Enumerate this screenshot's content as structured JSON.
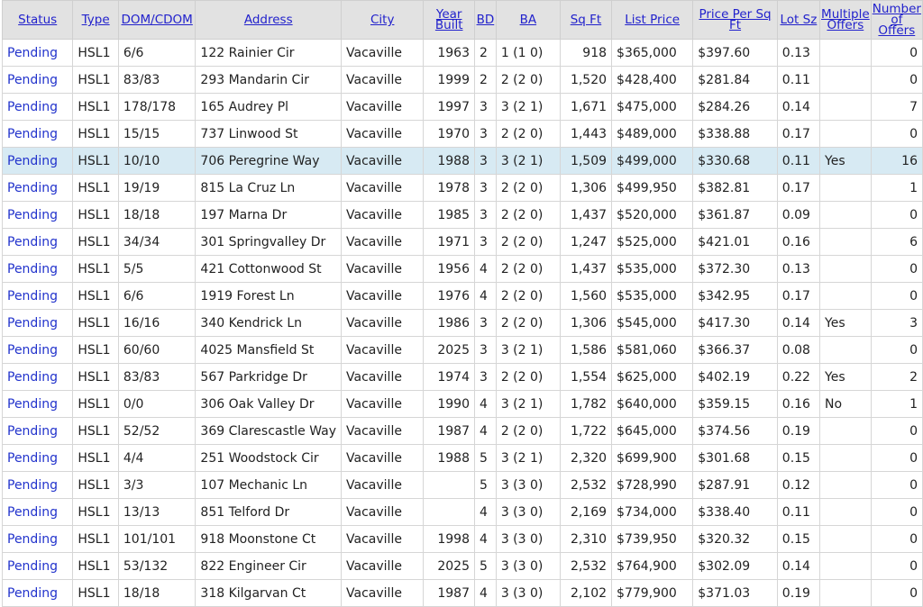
{
  "columns": [
    "Status",
    "Type",
    "DOM/CDOM",
    "Address",
    "City",
    "Year Built",
    "BD",
    "BA",
    "Sq Ft",
    "List Price",
    "Price Per Sq Ft",
    "Lot Sz",
    "Multiple Offers",
    "Number of Offers"
  ],
  "highlight_color": "#d7eaf3",
  "highlighted_row": 4,
  "rows": [
    [
      "Pending",
      "HSL1",
      "6/6",
      "122 Rainier Cir",
      "Vacaville",
      "1963",
      "2",
      "1 (1 0)",
      "918",
      "$365,000",
      "$397.60",
      "0.13",
      "",
      "0"
    ],
    [
      "Pending",
      "HSL1",
      "83/83",
      "293 Mandarin Cir",
      "Vacaville",
      "1999",
      "2",
      "2 (2 0)",
      "1,520",
      "$428,400",
      "$281.84",
      "0.11",
      "",
      "0"
    ],
    [
      "Pending",
      "HSL1",
      "178/178",
      "165 Audrey Pl",
      "Vacaville",
      "1997",
      "3",
      "3 (2 1)",
      "1,671",
      "$475,000",
      "$284.26",
      "0.14",
      "",
      "7"
    ],
    [
      "Pending",
      "HSL1",
      "15/15",
      "737 Linwood St",
      "Vacaville",
      "1970",
      "3",
      "2 (2 0)",
      "1,443",
      "$489,000",
      "$338.88",
      "0.17",
      "",
      "0"
    ],
    [
      "Pending",
      "HSL1",
      "10/10",
      "706 Peregrine Way",
      "Vacaville",
      "1988",
      "3",
      "3 (2 1)",
      "1,509",
      "$499,000",
      "$330.68",
      "0.11",
      "Yes",
      "16"
    ],
    [
      "Pending",
      "HSL1",
      "19/19",
      "815 La Cruz Ln",
      "Vacaville",
      "1978",
      "3",
      "2 (2 0)",
      "1,306",
      "$499,950",
      "$382.81",
      "0.17",
      "",
      "1"
    ],
    [
      "Pending",
      "HSL1",
      "18/18",
      "197 Marna Dr",
      "Vacaville",
      "1985",
      "3",
      "2 (2 0)",
      "1,437",
      "$520,000",
      "$361.87",
      "0.09",
      "",
      "0"
    ],
    [
      "Pending",
      "HSL1",
      "34/34",
      "301 Springvalley Dr",
      "Vacaville",
      "1971",
      "3",
      "2 (2 0)",
      "1,247",
      "$525,000",
      "$421.01",
      "0.16",
      "",
      "6"
    ],
    [
      "Pending",
      "HSL1",
      "5/5",
      "421 Cottonwood St",
      "Vacaville",
      "1956",
      "4",
      "2 (2 0)",
      "1,437",
      "$535,000",
      "$372.30",
      "0.13",
      "",
      "0"
    ],
    [
      "Pending",
      "HSL1",
      "6/6",
      "1919 Forest Ln",
      "Vacaville",
      "1976",
      "4",
      "2 (2 0)",
      "1,560",
      "$535,000",
      "$342.95",
      "0.17",
      "",
      "0"
    ],
    [
      "Pending",
      "HSL1",
      "16/16",
      "340 Kendrick Ln",
      "Vacaville",
      "1986",
      "3",
      "2 (2 0)",
      "1,306",
      "$545,000",
      "$417.30",
      "0.14",
      "Yes",
      "3"
    ],
    [
      "Pending",
      "HSL1",
      "60/60",
      "4025 Mansfield St",
      "Vacaville",
      "2025",
      "3",
      "3 (2 1)",
      "1,586",
      "$581,060",
      "$366.37",
      "0.08",
      "",
      "0"
    ],
    [
      "Pending",
      "HSL1",
      "83/83",
      "567 Parkridge Dr",
      "Vacaville",
      "1974",
      "3",
      "2 (2 0)",
      "1,554",
      "$625,000",
      "$402.19",
      "0.22",
      "Yes",
      "2"
    ],
    [
      "Pending",
      "HSL1",
      "0/0",
      "306 Oak Valley Dr",
      "Vacaville",
      "1990",
      "4",
      "3 (2 1)",
      "1,782",
      "$640,000",
      "$359.15",
      "0.16",
      "No",
      "1"
    ],
    [
      "Pending",
      "HSL1",
      "52/52",
      "369 Clarescastle Way",
      "Vacaville",
      "1987",
      "4",
      "2 (2 0)",
      "1,722",
      "$645,000",
      "$374.56",
      "0.19",
      "",
      "0"
    ],
    [
      "Pending",
      "HSL1",
      "4/4",
      "251 Woodstock Cir",
      "Vacaville",
      "1988",
      "5",
      "3 (2 1)",
      "2,320",
      "$699,900",
      "$301.68",
      "0.15",
      "",
      "0"
    ],
    [
      "Pending",
      "HSL1",
      "3/3",
      "107 Mechanic Ln",
      "Vacaville",
      "",
      "5",
      "3 (3 0)",
      "2,532",
      "$728,990",
      "$287.91",
      "0.12",
      "",
      "0"
    ],
    [
      "Pending",
      "HSL1",
      "13/13",
      "851 Telford Dr",
      "Vacaville",
      "",
      "4",
      "3 (3 0)",
      "2,169",
      "$734,000",
      "$338.40",
      "0.11",
      "",
      "0"
    ],
    [
      "Pending",
      "HSL1",
      "101/101",
      "918 Moonstone Ct",
      "Vacaville",
      "1998",
      "4",
      "3 (3 0)",
      "2,310",
      "$739,950",
      "$320.32",
      "0.15",
      "",
      "0"
    ],
    [
      "Pending",
      "HSL1",
      "53/132",
      "822 Engineer Cir",
      "Vacaville",
      "2025",
      "5",
      "3 (3 0)",
      "2,532",
      "$764,900",
      "$302.09",
      "0.14",
      "",
      "0"
    ],
    [
      "Pending",
      "HSL1",
      "18/18",
      "318 Kilgarvan Ct",
      "Vacaville",
      "1987",
      "4",
      "3 (3 0)",
      "2,102",
      "$779,900",
      "$371.03",
      "0.19",
      "",
      "0"
    ]
  ]
}
